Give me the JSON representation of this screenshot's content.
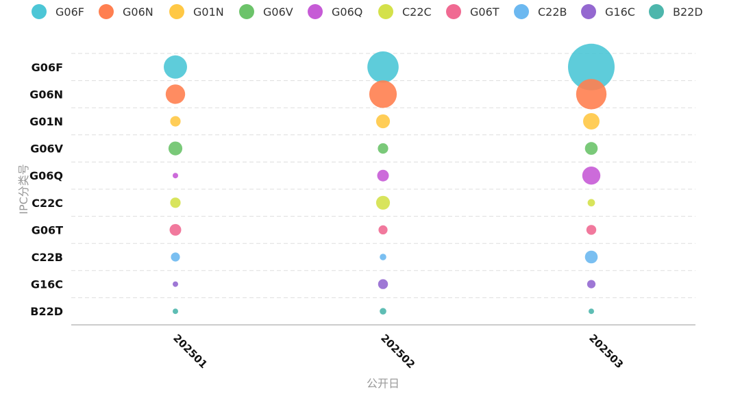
{
  "chart_data": {
    "type": "scatter",
    "subtype": "bubble",
    "xlabel": "公开日",
    "ylabel": "IPC分类号",
    "x_categories": [
      "202501",
      "202502",
      "202503"
    ],
    "y_categories": [
      "G06F",
      "G06N",
      "G01N",
      "G06V",
      "G06Q",
      "C22C",
      "G06T",
      "C22B",
      "G16C",
      "B22D"
    ],
    "legend_position": "top",
    "grid": true,
    "series": [
      {
        "name": "G06F",
        "color": "#4CC6D6",
        "values": [
          10,
          18,
          40
        ]
      },
      {
        "name": "G06N",
        "color": "#FF7F50",
        "values": [
          7,
          14,
          17
        ]
      },
      {
        "name": "G01N",
        "color": "#FFC845",
        "values": [
          2,
          3.5,
          5
        ]
      },
      {
        "name": "G06V",
        "color": "#6CC36A",
        "values": [
          3.5,
          2,
          3
        ]
      },
      {
        "name": "G06Q",
        "color": "#C65BD6",
        "values": [
          0.5,
          2.5,
          6
        ]
      },
      {
        "name": "C22C",
        "color": "#D4E14A",
        "values": [
          2,
          3.5,
          1
        ]
      },
      {
        "name": "G06T",
        "color": "#F06A92",
        "values": [
          2.5,
          1.5,
          1.8
        ]
      },
      {
        "name": "C22B",
        "color": "#6CB8F0",
        "values": [
          1.5,
          0.8,
          3
        ]
      },
      {
        "name": "G16C",
        "color": "#9468D0",
        "values": [
          0.5,
          1.8,
          1.3
        ]
      },
      {
        "name": "B22D",
        "color": "#4DB6AC",
        "values": [
          0.5,
          0.8,
          0.5
        ]
      }
    ]
  }
}
